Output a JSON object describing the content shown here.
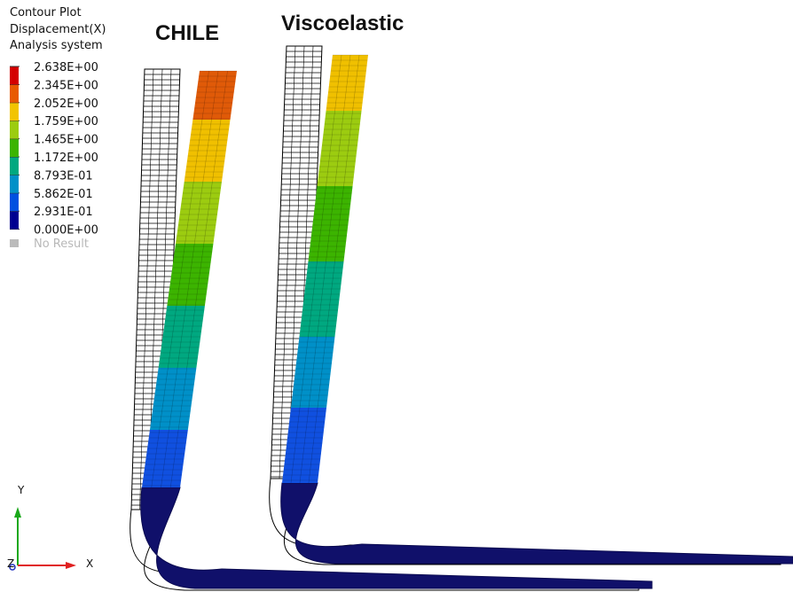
{
  "legend": {
    "title": [
      "Contour Plot",
      "Displacement(X)",
      "Analysis system"
    ],
    "levels": [
      "2.638E+00",
      "2.345E+00",
      "2.052E+00",
      "1.759E+00",
      "1.465E+00",
      "1.172E+00",
      "8.793E-01",
      "5.862E-01",
      "2.931E-01",
      "0.000E+00"
    ],
    "no_result": "No Result"
  },
  "labels": {
    "left": "CHILE",
    "right": "Viscoelastic"
  },
  "triad": {
    "y": "Y",
    "x": "X",
    "z": "Z"
  }
}
